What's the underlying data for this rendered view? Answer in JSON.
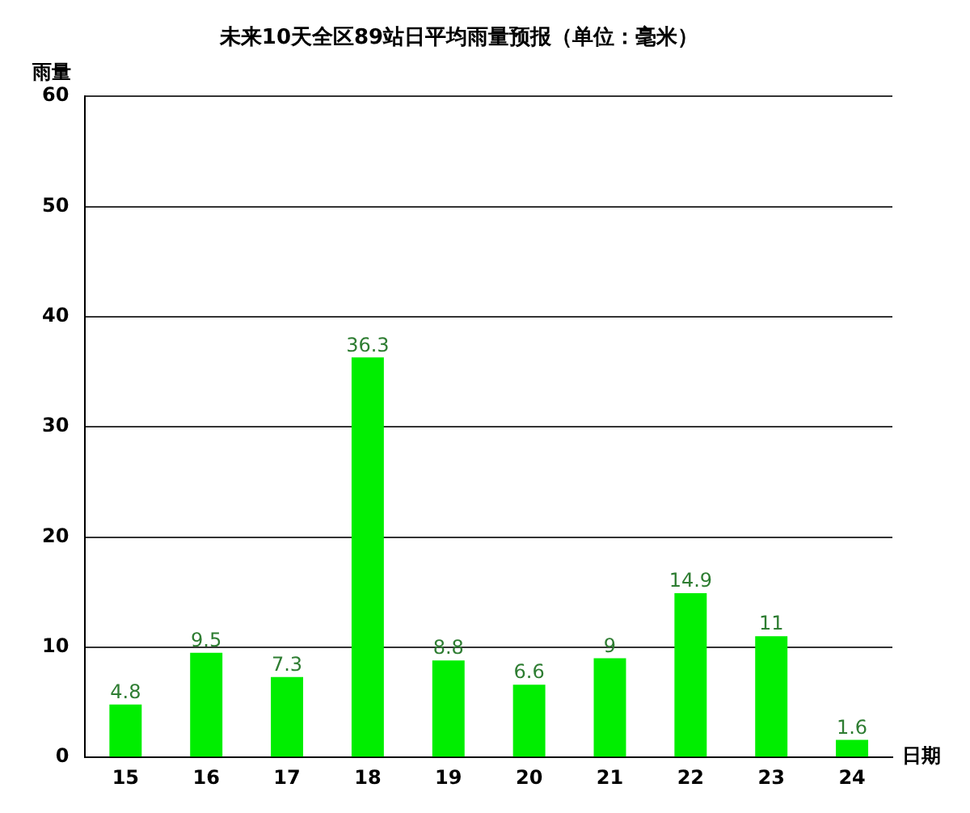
{
  "chart_data": {
    "type": "bar",
    "title": "未来10天全区89站日平均雨量预报（单位：毫米）",
    "xlabel": "日期",
    "ylabel": "雨量",
    "categories": [
      "15",
      "16",
      "17",
      "18",
      "19",
      "20",
      "21",
      "22",
      "23",
      "24"
    ],
    "values": [
      4.8,
      9.5,
      7.3,
      36.3,
      8.8,
      6.6,
      9,
      14.9,
      11,
      1.6
    ],
    "color": "#00ee00",
    "ylim": [
      0,
      60
    ],
    "yticks": [
      0,
      10,
      20,
      30,
      40,
      50,
      60
    ],
    "grid": "y",
    "data_labels": true
  }
}
